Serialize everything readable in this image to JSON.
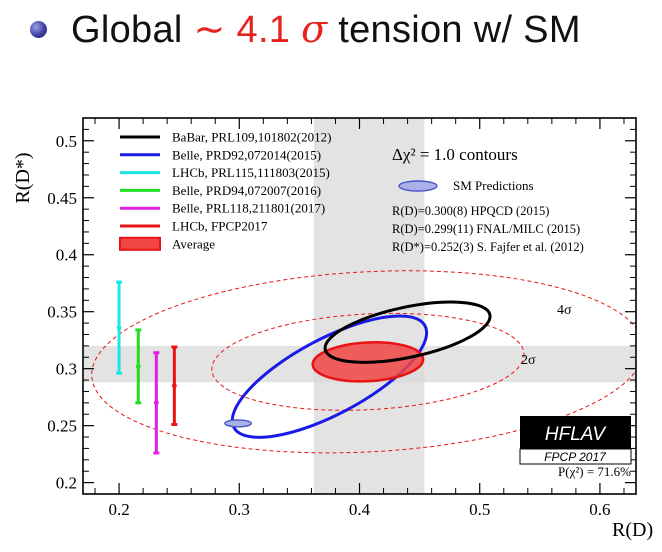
{
  "slide": {
    "bullet_prefix": "Global",
    "tension_value": "∼ 4.1",
    "sigma_symbol": "σ",
    "bullet_suffix": "tension w/ SM",
    "accent_color": "#e8231e"
  },
  "chart_data": {
    "type": "scatter",
    "xlabel": "R(D)",
    "ylabel": "R(D*)",
    "xlim": [
      0.17,
      0.63
    ],
    "ylim": [
      0.19,
      0.52
    ],
    "xticks": [
      0.2,
      0.3,
      0.4,
      0.5,
      0.6
    ],
    "xtick_labels": [
      "0.2",
      "0.3",
      "0.4",
      "0.5",
      "0.6"
    ],
    "yticks": [
      0.2,
      0.25,
      0.3,
      0.35,
      0.4,
      0.45,
      0.5
    ],
    "ytick_labels": [
      "0.2",
      "0.25",
      "0.3",
      "0.35",
      "0.4",
      "0.45",
      "0.5"
    ],
    "legend": [
      {
        "label": "BaBar, PRL109,101802(2012)",
        "color": "#000000"
      },
      {
        "label": "Belle, PRD92,072014(2015)",
        "color": "#1a1ae6"
      },
      {
        "label": "LHCb, PRL115,111803(2015)",
        "color": "#1ee6e6"
      },
      {
        "label": "Belle, PRD94,072007(2016)",
        "color": "#22dd22"
      },
      {
        "label": "Belle, PRL118,211801(2017)",
        "color": "#e020e0"
      },
      {
        "label": "LHCb, FPCP2017",
        "color": "#e81414"
      },
      {
        "label": "Average",
        "color": "#e81414",
        "filled": true
      }
    ],
    "annotations": {
      "contours": "Δχ² = 1.0 contours",
      "sm_predictions": "SM Predictions",
      "line1": "R(D)=0.300(8) HPQCD (2015)",
      "line2": "R(D)=0.299(11) FNAL/MILC (2015)",
      "line3": "R(D*)=0.252(3) S. Fajfer et al. (2012)",
      "sigma4": "4σ",
      "sigma2": "2σ",
      "hflav": "HFLAV",
      "fpcp": "FPCP 2017",
      "prob": "P(χ²) = 71.6%"
    },
    "ellipses": [
      {
        "name": "BaBar",
        "cx": 0.44,
        "cy": 0.332,
        "rx": 0.07,
        "ry": 0.022,
        "angle": -12,
        "color": "#000000",
        "width": 3
      },
      {
        "name": "Belle 2015",
        "cx": 0.375,
        "cy": 0.293,
        "rx": 0.09,
        "ry": 0.033,
        "angle": -28,
        "color": "#1a1ae6",
        "width": 3
      },
      {
        "name": "Average",
        "cx": 0.407,
        "cy": 0.306,
        "rx": 0.046,
        "ry": 0.017,
        "angle": -3,
        "color": "#e81414",
        "width": 2.5,
        "fill": "#f24545",
        "fill_opacity": 0.85
      },
      {
        "name": "2σ",
        "cx": 0.407,
        "cy": 0.306,
        "rx": 0.13,
        "ry": 0.042,
        "angle": -3,
        "color": "#e81414",
        "width": 1,
        "dashed": true
      },
      {
        "name": "4σ",
        "cx": 0.407,
        "cy": 0.306,
        "rx": 0.23,
        "ry": 0.079,
        "angle": -3,
        "color": "#e81414",
        "width": 1,
        "dashed": true
      }
    ],
    "error_bars": [
      {
        "name": "LHCb 2015 R(D*)",
        "x": 0.2,
        "y": 0.336,
        "low": 0.296,
        "high": 0.376,
        "color": "#1ee6e6"
      },
      {
        "name": "Belle 2016 R(D*)",
        "x": 0.216,
        "y": 0.302,
        "low": 0.27,
        "high": 0.334,
        "color": "#22dd22"
      },
      {
        "name": "Belle 2017 R(D*)",
        "x": 0.231,
        "y": 0.27,
        "low": 0.226,
        "high": 0.314,
        "color": "#e020e0"
      },
      {
        "name": "LHCb 2017 R(D*)",
        "x": 0.246,
        "y": 0.285,
        "low": 0.251,
        "high": 0.319,
        "color": "#e81414"
      }
    ],
    "sm_prediction": {
      "x": 0.299,
      "y": 0.252,
      "rx": 0.011,
      "ry": 0.003
    },
    "bands": [
      {
        "orientation": "horizontal",
        "low": 0.288,
        "high": 0.32
      },
      {
        "orientation": "vertical",
        "low": 0.362,
        "high": 0.454
      }
    ]
  }
}
